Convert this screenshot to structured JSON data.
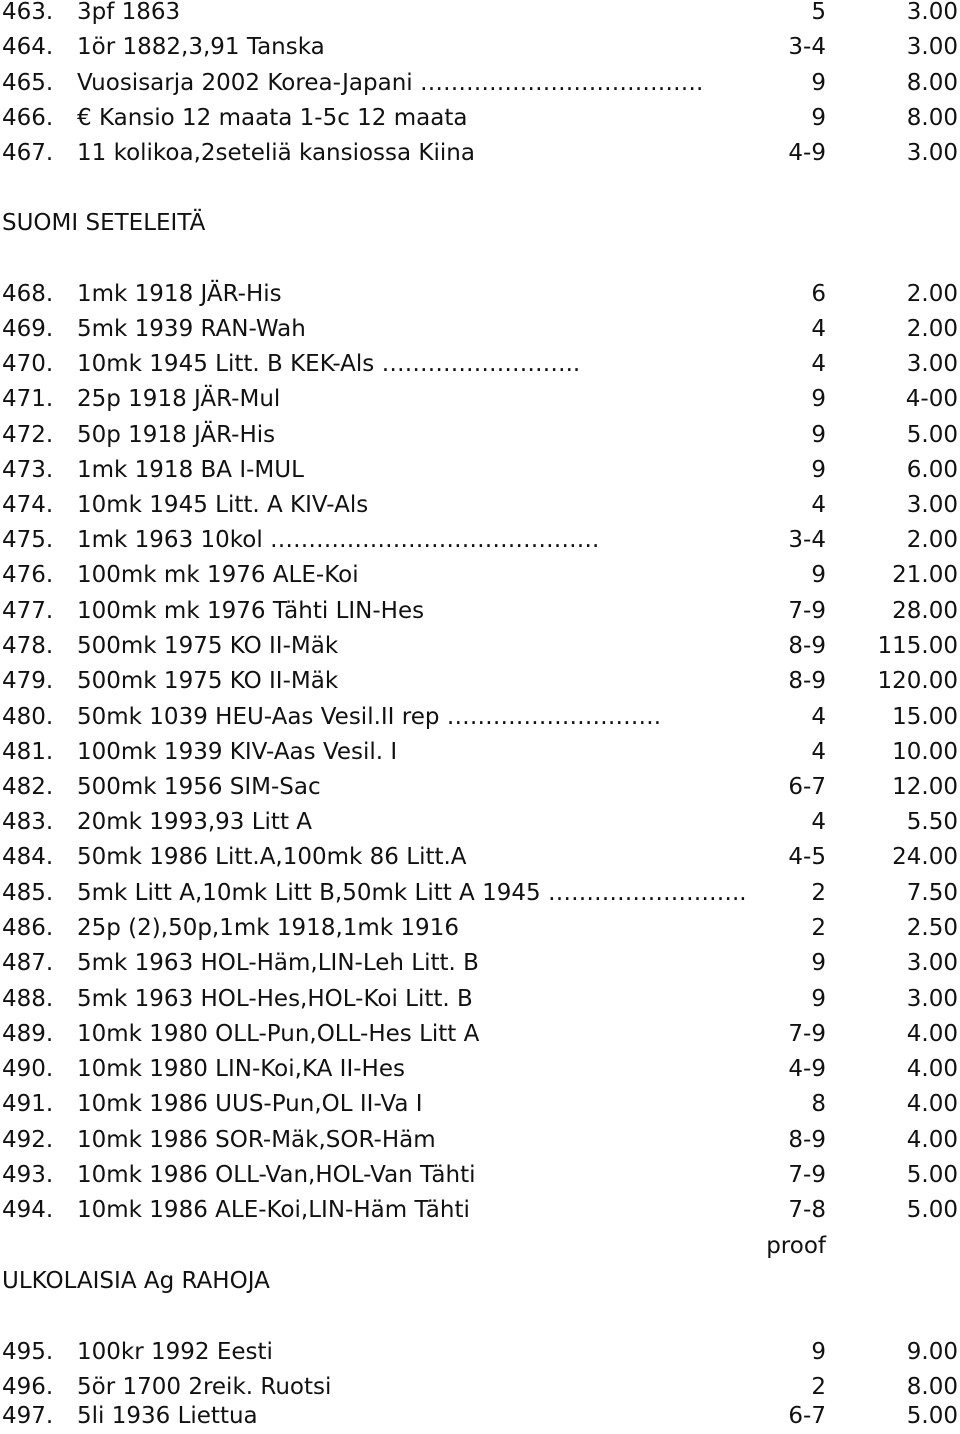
{
  "section_1": {
    "items": [
      {
        "num": "463.",
        "desc": "3pf 1863",
        "grade": "5",
        "price": "3.00"
      },
      {
        "num": "464.",
        "desc": "1ör 1882,3,91 Tanska",
        "grade": "3-4",
        "price": "3.00"
      },
      {
        "num": "465.",
        "desc": "Vuosisarja 2002 Korea-Japani ……………………………….",
        "grade": "9",
        "price": "8.00"
      },
      {
        "num": "466.",
        "desc": "€ Kansio 12 maata 1-5c 12 maata",
        "grade": "9",
        "price": "8.00"
      },
      {
        "num": "467.",
        "desc": "11 kolikoa,2seteliä kansiossa Kiina",
        "grade": "4-9",
        "price": "3.00"
      }
    ]
  },
  "section_2": {
    "heading": "SUOMI SETELEITÄ",
    "items": [
      {
        "num": "468.",
        "desc": "1mk 1918 JÄR-His",
        "grade": "6",
        "price": "2.00"
      },
      {
        "num": "469.",
        "desc": "5mk 1939 RAN-Wah",
        "grade": "4",
        "price": "2.00"
      },
      {
        "num": "470.",
        "desc": "10mk 1945 Litt. B KEK-Als ……………………..",
        "grade": "4",
        "price": "3.00"
      },
      {
        "num": "471.",
        "desc": "25p 1918 JÄR-Mul",
        "grade": "9",
        "price": "4-00"
      },
      {
        "num": "472.",
        "desc": "50p 1918 JÄR-His",
        "grade": "9",
        "price": "5.00"
      },
      {
        "num": "473.",
        "desc": "1mk 1918 BA I-MUL",
        "grade": "9",
        "price": "6.00"
      },
      {
        "num": "474.",
        "desc": "10mk 1945 Litt. A KIV-Als",
        "grade": "4",
        "price": "3.00"
      },
      {
        "num": "475.",
        "desc": "1mk 1963 10kol   …………………………………….",
        "grade": "3-4",
        "price": "2.00"
      },
      {
        "num": "476.",
        "desc": "100mk mk 1976 ALE-Koi",
        "grade": "9",
        "price": "21.00"
      },
      {
        "num": "477.",
        "desc": "100mk mk 1976 Tähti LIN-Hes",
        "grade": "7-9",
        "price": "28.00"
      },
      {
        "num": "478.",
        "desc": "500mk 1975 KO II-Mäk",
        "grade": "8-9",
        "price": "115.00"
      },
      {
        "num": "479.",
        "desc": "500mk 1975 KO II-Mäk",
        "grade": "8-9",
        "price": "120.00"
      },
      {
        "num": "480.",
        "desc": "50mk 1039 HEU-Aas    Vesil.II     rep    ……………………….",
        "grade": "4",
        "price": "15.00"
      },
      {
        "num": "481.",
        "desc": "100mk 1939 KIV-Aas Vesil. I",
        "grade": "4",
        "price": "10.00"
      },
      {
        "num": "482.",
        "desc": "500mk 1956 SIM-Sac",
        "grade": "6-7",
        "price": "12.00"
      },
      {
        "num": "483.",
        "desc": "20mk 1993,93 Litt A",
        "grade": "4",
        "price": "5.50"
      },
      {
        "num": "484.",
        "desc": "50mk 1986 Litt.A,100mk 86 Litt.A",
        "grade": "4-5",
        "price": "24.00"
      },
      {
        "num": "485.",
        "desc": "5mk Litt A,10mk Litt B,50mk Litt A 1945     ……………………..",
        "grade": "2",
        "price": "7.50"
      },
      {
        "num": "486.",
        "desc": "25p (2),50p,1mk 1918,1mk 1916",
        "grade": "2",
        "price": "2.50"
      },
      {
        "num": "487.",
        "desc": "5mk 1963 HOL-Häm,LIN-Leh Litt. B",
        "grade": "9",
        "price": "3.00"
      },
      {
        "num": "488.",
        "desc": "5mk 1963 HOL-Hes,HOL-Koi Litt. B",
        "grade": "9",
        "price": "3.00"
      },
      {
        "num": "489.",
        "desc": "10mk 1980 OLL-Pun,OLL-Hes Litt A",
        "grade": "7-9",
        "price": "4.00"
      },
      {
        "num": "490.",
        "desc": "10mk 1980 LIN-Koi,KA II-Hes",
        "grade": "4-9",
        "price": "4.00"
      },
      {
        "num": "491.",
        "desc": "10mk 1986 UUS-Pun,OL II-Va I",
        "grade": "8",
        "price": "4.00"
      },
      {
        "num": "492.",
        "desc": "10mk 1986 SOR-Mäk,SOR-Häm",
        "grade": "8-9",
        "price": "4.00"
      },
      {
        "num": "493.",
        "desc": "10mk 1986 OLL-Van,HOL-Van Tähti",
        "grade": "7-9",
        "price": "5.00"
      },
      {
        "num": "494.",
        "desc": "10mk 1986 ALE-Koi,LIN-Häm Tähti",
        "grade": "7-8",
        "price": "5.00"
      }
    ],
    "note": "proof"
  },
  "section_3": {
    "heading": "ULKOLAISIA Ag RAHOJA",
    "items": [
      {
        "num": "495.",
        "desc": "100kr 1992 Eesti",
        "grade": "9",
        "price": "9.00"
      },
      {
        "num": "496.",
        "desc": "5ör 1700 2reik. Ruotsi",
        "grade": "2",
        "price": "8.00"
      },
      {
        "num": "497.",
        "desc": "5li 1936 Liettua",
        "grade": "6-7",
        "price": "5.00"
      }
    ]
  }
}
